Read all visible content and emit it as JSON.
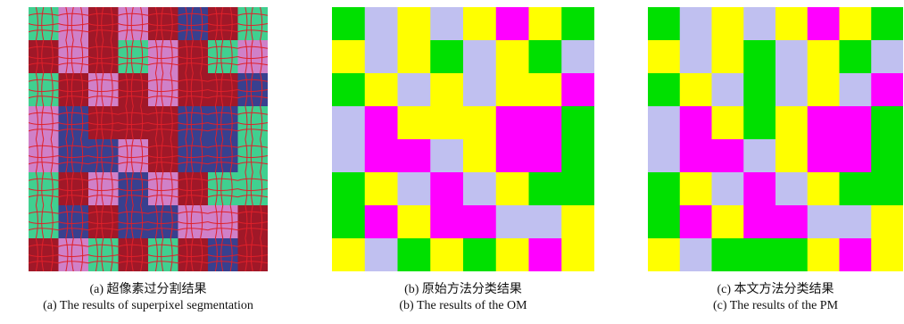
{
  "figures": [
    {
      "caption_cn": "(a) 超像素过分割结果",
      "caption_en": "(a) The results of superpixel segmentation"
    },
    {
      "caption_cn": "(b) 原始方法分类结果",
      "caption_en": "(b) The results of the OM"
    },
    {
      "caption_cn": "(c) 本文方法分类结果",
      "caption_en": "(c) The results of the PM"
    }
  ]
}
